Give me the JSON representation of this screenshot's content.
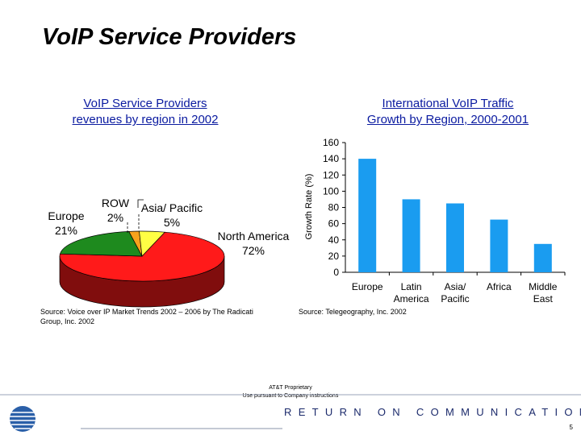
{
  "slide": {
    "title": "VoIP Service Providers",
    "page_number": "5",
    "footer_line1": "AT&T Proprietary",
    "footer_line2": "Use pursuant to Company instructions",
    "tagline": "RETURN ON COMMUNICATIONS",
    "logo_text": "AT&T"
  },
  "pie_section": {
    "title_line1": "VoIP Service Providers",
    "title_line2": "revenues by region in 2002",
    "source_line1": "Source:  Voice over IP Market Trends 2002 – 2006 by The Radicati",
    "source_line2": "Group, Inc. 2002"
  },
  "bar_section": {
    "title_line1": "International VoIP Traffic",
    "title_line2": "Growth by Region, 2000-2001",
    "source": "Source:  Telegeography, Inc. 2002"
  },
  "chart_data": [
    {
      "type": "pie",
      "slices": [
        {
          "label_line1": "North America",
          "label_line2": "72%",
          "value": 72,
          "color": "#ff1a1a"
        },
        {
          "label_line1": "Europe",
          "label_line2": "21%",
          "value": 21,
          "color": "#1e8a1e"
        },
        {
          "label_line1": "ROW",
          "label_line2": "2%",
          "value": 2,
          "color": "#f7a21c"
        },
        {
          "label_line1": "Asia/ Pacific",
          "label_line2": "5%",
          "value": 5,
          "color": "#ffff44"
        }
      ]
    },
    {
      "type": "bar",
      "ylabel": "Growth Rate (%)",
      "ylim": [
        0,
        160
      ],
      "yticks": [
        0,
        20,
        40,
        60,
        80,
        100,
        120,
        140,
        160
      ],
      "grid": false,
      "bar_color": "#1a9cf0",
      "categories": [
        {
          "line1": "Europe",
          "line2": ""
        },
        {
          "line1": "Latin",
          "line2": "America"
        },
        {
          "line1": "Asia/",
          "line2": "Pacific"
        },
        {
          "line1": "Africa",
          "line2": ""
        },
        {
          "line1": "Middle",
          "line2": "East"
        }
      ],
      "values": [
        140,
        90,
        85,
        65,
        35
      ]
    }
  ]
}
